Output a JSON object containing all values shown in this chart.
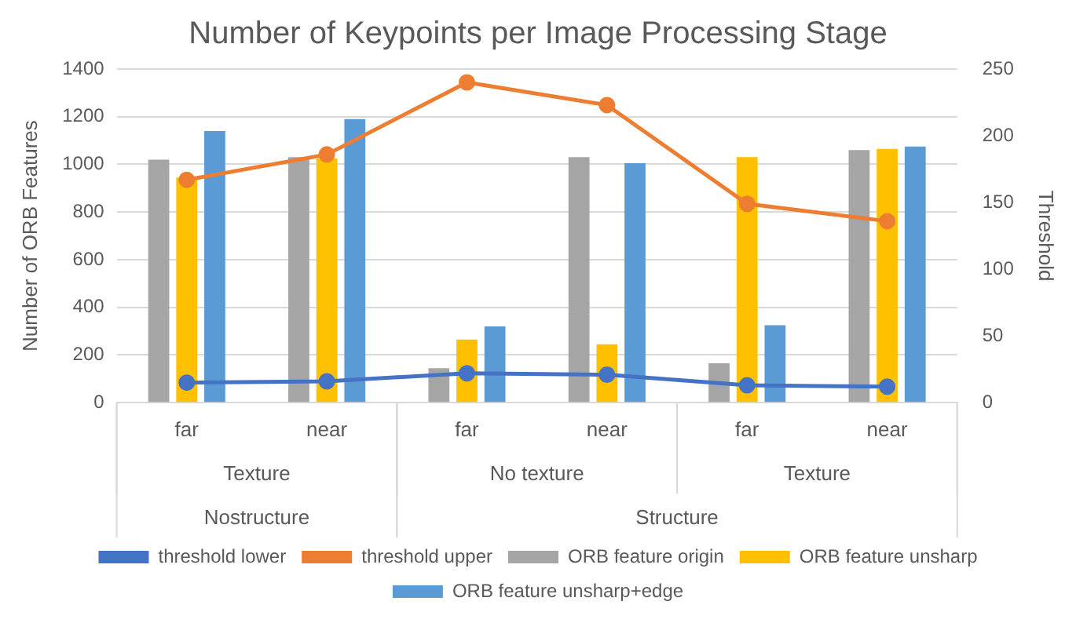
{
  "chart_data": {
    "type": "bar",
    "title": "Number of Keypoints per Image Processing Stage",
    "ylabel": "Number of ORB Features",
    "y2label": "Threshold",
    "categories": [
      "far",
      "near",
      "far",
      "near",
      "far",
      "near"
    ],
    "annotations": [
      "Texture",
      "No texture",
      "Texture",
      "Nostructure",
      "Structure"
    ],
    "series": [
      {
        "name": "ORB feature origin",
        "color": "#a5a5a5",
        "values": [
          1020,
          1030,
          145,
          1030,
          165,
          1060
        ]
      },
      {
        "name": "ORB feature unsharp",
        "color": "#ffc000",
        "values": [
          945,
          1025,
          265,
          245,
          1030,
          1065
        ]
      },
      {
        "name": "ORB feature unsharp+edge",
        "color": "#5b9bd5",
        "values": [
          1140,
          1190,
          320,
          1005,
          325,
          1075
        ]
      },
      {
        "name": "threshold lower",
        "type": "line",
        "axis": "y2",
        "color": "#4472c4",
        "values": [
          15,
          16,
          22,
          21,
          13,
          12
        ]
      },
      {
        "name": "threshold upper",
        "type": "line",
        "axis": "y2",
        "color": "#ed7d31",
        "values": [
          167,
          186,
          240,
          223,
          149,
          136
        ]
      }
    ],
    "ylim": [
      0,
      1400
    ],
    "yticks": [
      0,
      200,
      400,
      600,
      800,
      1000,
      1200,
      1400
    ],
    "y2lim": [
      0,
      250
    ],
    "y2ticks": [
      0,
      50,
      100,
      150,
      200,
      250
    ],
    "grid": "y",
    "legend": "bottom",
    "marker": "circle"
  }
}
